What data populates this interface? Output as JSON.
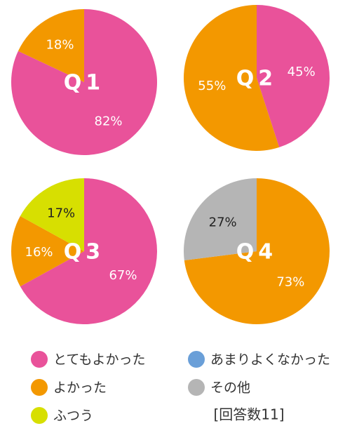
{
  "chart_data": [
    {
      "type": "pie",
      "title": "Q1",
      "categories": [
        "とてもよかった",
        "よかった"
      ],
      "values": [
        82,
        18
      ],
      "value_labels": [
        "82%",
        "18%"
      ],
      "colors": [
        "#e9529a",
        "#f39800"
      ]
    },
    {
      "type": "pie",
      "title": "Q2",
      "categories": [
        "とてもよかった",
        "よかった"
      ],
      "values": [
        45,
        55
      ],
      "value_labels": [
        "45%",
        "55%"
      ],
      "colors": [
        "#e9529a",
        "#f39800"
      ]
    },
    {
      "type": "pie",
      "title": "Q3",
      "categories": [
        "とてもよかった",
        "よかった",
        "ふつう"
      ],
      "values": [
        67,
        16,
        17
      ],
      "value_labels": [
        "67%",
        "16%",
        "17%"
      ],
      "colors": [
        "#e9529a",
        "#f39800",
        "#d7df01"
      ]
    },
    {
      "type": "pie",
      "title": "Q4",
      "categories": [
        "よかった",
        "その他"
      ],
      "values": [
        73,
        27
      ],
      "value_labels": [
        "73%",
        "27%"
      ],
      "colors": [
        "#f39800",
        "#b5b5b5"
      ]
    }
  ],
  "legend": [
    {
      "name": "とてもよかった",
      "color": "#e9529a"
    },
    {
      "name": "あまりよくなかった",
      "color": "#6a9fd8"
    },
    {
      "name": "よかった",
      "color": "#f39800"
    },
    {
      "name": "その他",
      "color": "#b5b5b5"
    },
    {
      "name": "ふつう",
      "color": "#d7df01"
    }
  ],
  "note": "[回答数11]"
}
